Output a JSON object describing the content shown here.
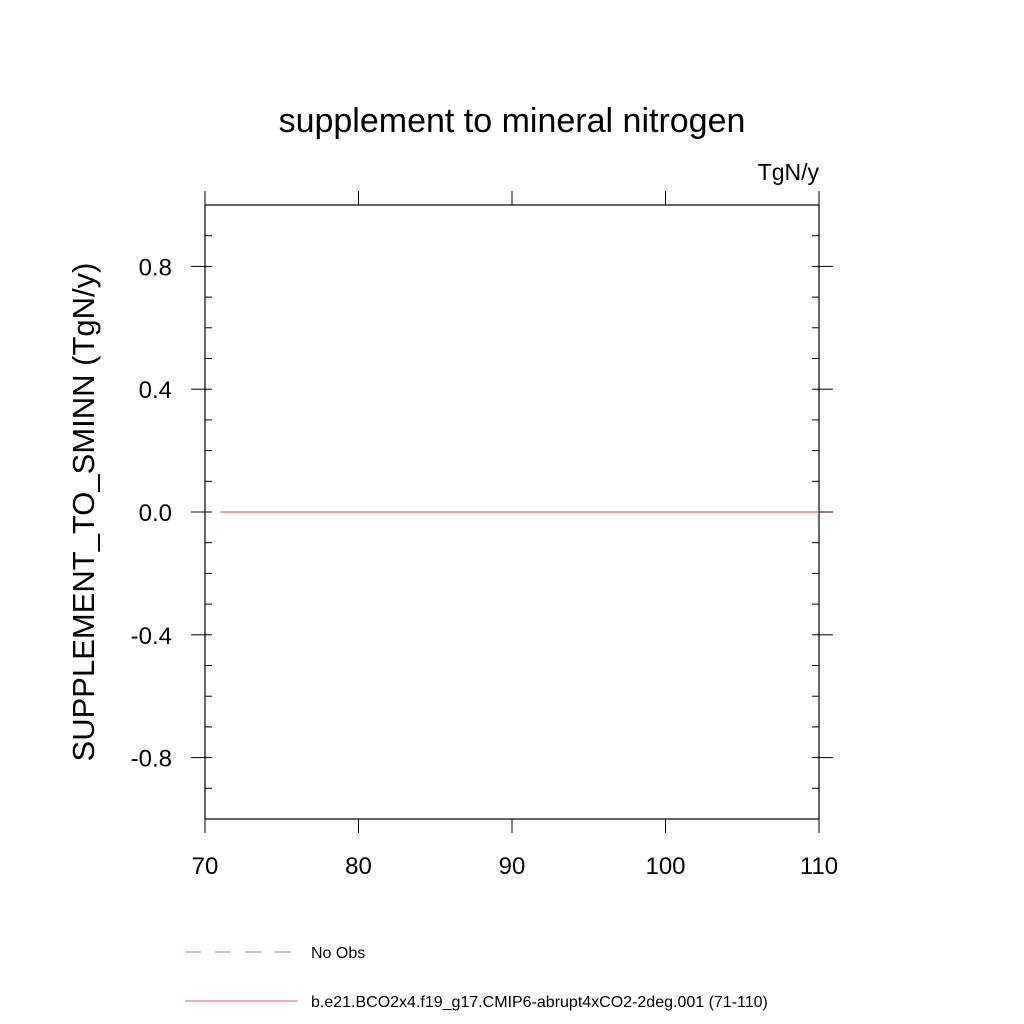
{
  "chart_data": {
    "type": "line",
    "title": "supplement to mineral nitrogen",
    "units_label": "TgN/y",
    "ylabel": "SUPPLEMENT_TO_SMINN  (TgN/y)",
    "xlabel": "",
    "xlim": [
      70,
      110
    ],
    "ylim": [
      -1.0,
      1.0
    ],
    "x_ticks": [
      70,
      80,
      90,
      100,
      110
    ],
    "x_tick_labels": [
      "70",
      "80",
      "90",
      "100",
      "110"
    ],
    "y_ticks": [
      0.8,
      0.4,
      0.0,
      -0.4,
      -0.8
    ],
    "y_tick_labels": [
      "0.8",
      "0.4",
      "0.0",
      "-0.4",
      "-0.8"
    ],
    "grid": false,
    "legend_position": "bottom",
    "series": [
      {
        "name": "No Obs",
        "color": "#8080c8",
        "style": "dashed",
        "x": [],
        "values": []
      },
      {
        "name": "b.e21.BCO2x4.f19_g17.CMIP6-abrupt4xCO2-2deg.001 (71-110)",
        "color": "#e06060",
        "style": "solid",
        "x": [
          71,
          110
        ],
        "values": [
          0.0,
          0.0
        ]
      }
    ]
  }
}
